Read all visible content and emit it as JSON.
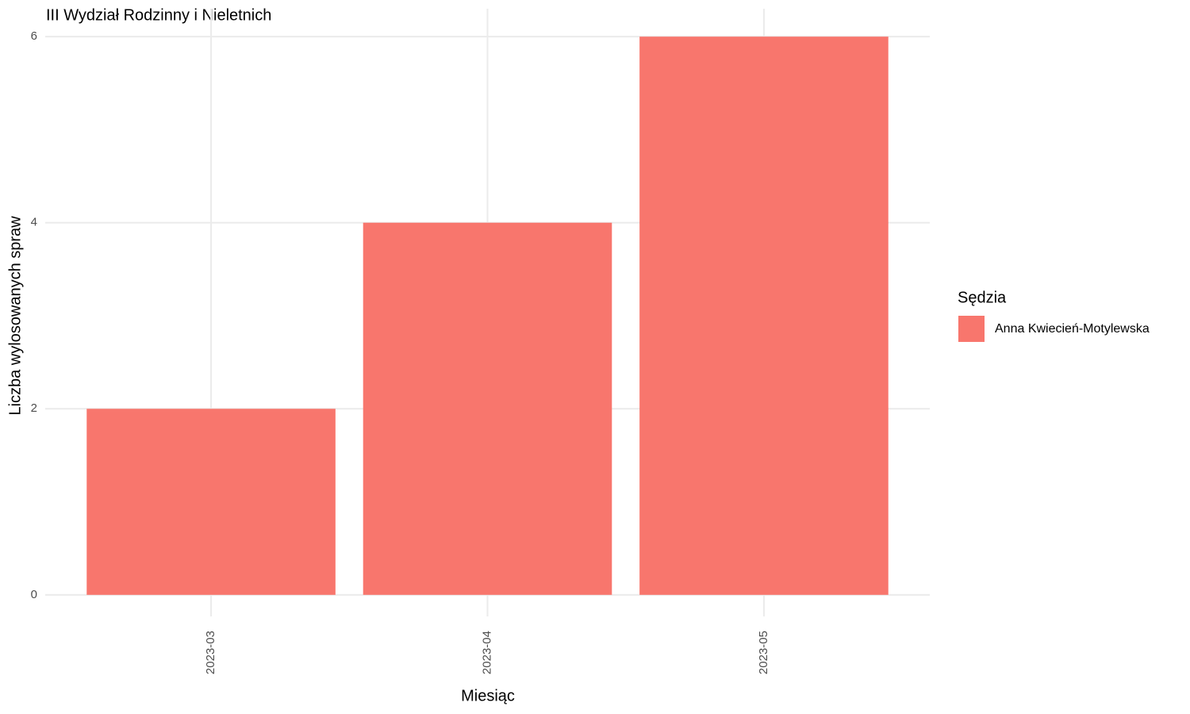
{
  "chart_data": {
    "type": "bar",
    "title": "III Wydział Rodzinny i Nieletnich",
    "x_label": "Miesiąc",
    "y_label": "Liczba wylosowanych spraw",
    "categories": [
      "2023-03",
      "2023-04",
      "2023-05"
    ],
    "series": [
      {
        "name": "Anna Kwiecień-Motylewska",
        "color": "#f8766d",
        "values": [
          2,
          4,
          6
        ]
      }
    ],
    "ylim": [
      -0.3,
      6.3
    ],
    "yticks": [
      0,
      2,
      4,
      6
    ],
    "grid": true,
    "legend_title": "Sędzia",
    "legend_position": "right"
  }
}
